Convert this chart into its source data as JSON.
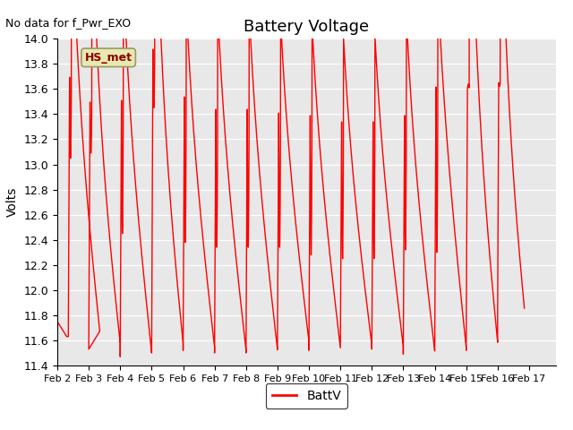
{
  "title": "Battery Voltage",
  "annotation": "No data for f_Pwr_EXO",
  "ylabel": "Volts",
  "legend_label": "BattV",
  "line_color": "red",
  "ylim": [
    11.4,
    14.0
  ],
  "xtick_labels": [
    "Feb 2",
    "Feb 3",
    "Feb 4",
    "Feb 5",
    "Feb 6",
    "Feb 7",
    "Feb 8",
    "Feb 9",
    "Feb 10",
    "Feb 11",
    "Feb 12",
    "Feb 13",
    "Feb 14",
    "Feb 15",
    "Feb 16",
    "Feb 17"
  ],
  "background_color": "#e8e8e8",
  "legend_box_color": "#e8e8b0",
  "legend_box_text": "HS_met",
  "yticks": [
    11.4,
    11.6,
    11.8,
    12.0,
    12.2,
    12.4,
    12.6,
    12.8,
    13.0,
    13.2,
    13.4,
    13.6,
    13.8,
    14.0
  ],
  "figsize": [
    6.4,
    4.8
  ],
  "dpi": 100
}
